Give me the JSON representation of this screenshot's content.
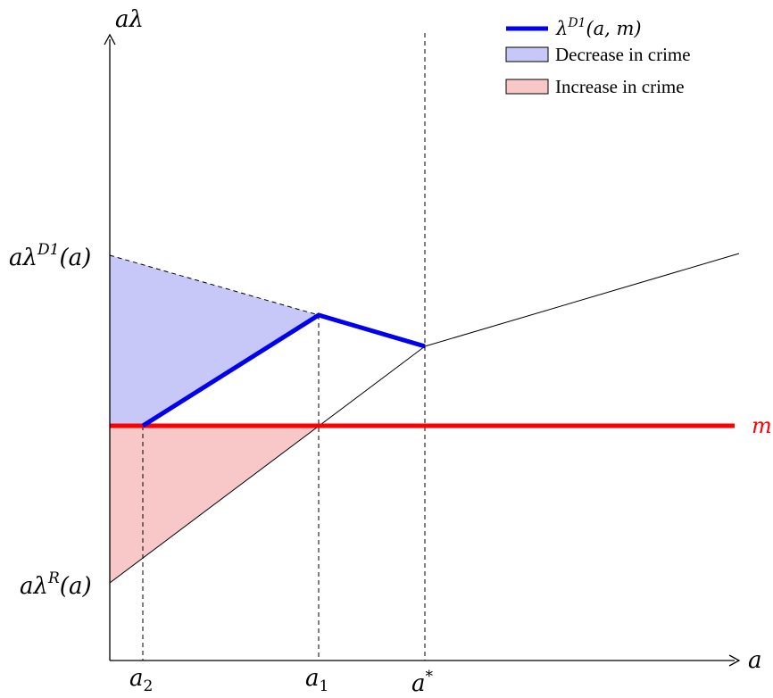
{
  "axes": {
    "y_label": "aλ",
    "x_label": "a"
  },
  "tick_labels": {
    "a2": {
      "base": "a",
      "sub": "2"
    },
    "a1": {
      "base": "a",
      "sub": "1"
    },
    "a_star": {
      "base": "a",
      "sup": "*"
    },
    "y_high": {
      "base": "aλ",
      "sup": "D1",
      "tail": "(a)"
    },
    "y_low": {
      "base": "aλ",
      "sup": "R",
      "tail": "(a)"
    }
  },
  "m_label": "m",
  "legend": {
    "items": [
      {
        "label_base": "λ",
        "label_sup": "D1",
        "label_tail": "(a, m)",
        "color": "#0000ee",
        "kind": "line"
      },
      {
        "label": "Decrease in crime",
        "color": "#c8c8f8",
        "kind": "swatch"
      },
      {
        "label": "Increase in crime",
        "color": "#f8c8c8",
        "kind": "swatch"
      }
    ]
  },
  "colors": {
    "policy_line": "#0000ee",
    "m_line": "#ff0000",
    "decrease_fill": "#c8c8f8",
    "increase_fill": "#f8c8c8",
    "axis": "#000000"
  }
}
